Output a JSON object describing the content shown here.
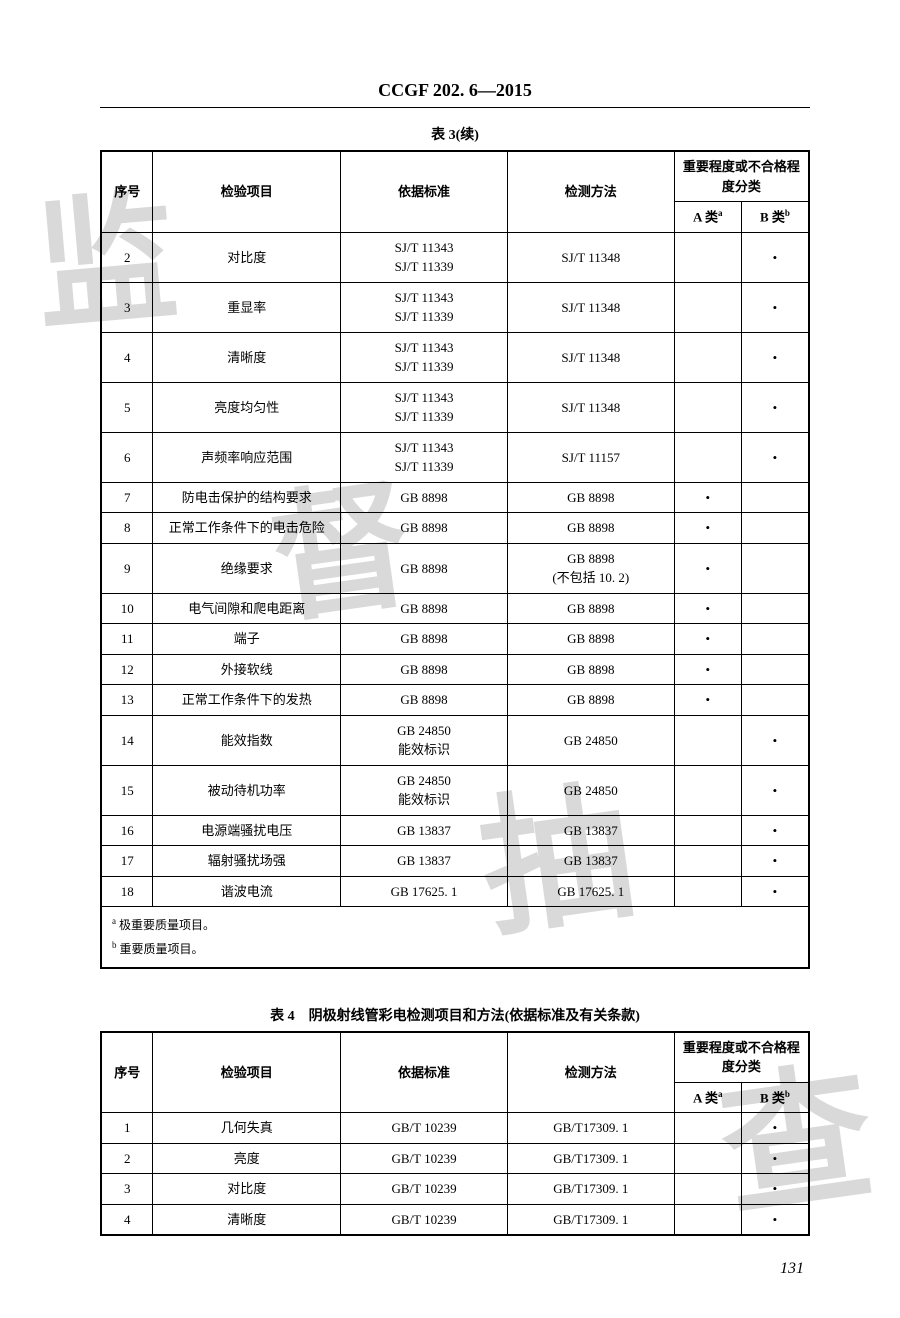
{
  "header": "CCGF 202. 6—2015",
  "page_number": "131",
  "table3": {
    "caption": "表 3(续)",
    "columns": {
      "seq": "序号",
      "item": "检验项目",
      "standard": "依据标准",
      "method": "检测方法",
      "importance_group": "重要程度或不合格程度分类",
      "classA": "A 类",
      "classB": "B 类",
      "sup_a": "a",
      "sup_b": "b"
    },
    "rows": [
      {
        "seq": "2",
        "item": "对比度",
        "standard": "SJ/T 11343\nSJ/T 11339",
        "method": "SJ/T 11348",
        "a": "",
        "b": "•"
      },
      {
        "seq": "3",
        "item": "重显率",
        "standard": "SJ/T 11343\nSJ/T 11339",
        "method": "SJ/T 11348",
        "a": "",
        "b": "•"
      },
      {
        "seq": "4",
        "item": "清晰度",
        "standard": "SJ/T 11343\nSJ/T 11339",
        "method": "SJ/T 11348",
        "a": "",
        "b": "•"
      },
      {
        "seq": "5",
        "item": "亮度均匀性",
        "standard": "SJ/T 11343\nSJ/T 11339",
        "method": "SJ/T 11348",
        "a": "",
        "b": "•"
      },
      {
        "seq": "6",
        "item": "声频率响应范围",
        "standard": "SJ/T 11343\nSJ/T 11339",
        "method": "SJ/T 11157",
        "a": "",
        "b": "•"
      },
      {
        "seq": "7",
        "item": "防电击保护的结构要求",
        "standard": "GB 8898",
        "method": "GB 8898",
        "a": "•",
        "b": ""
      },
      {
        "seq": "8",
        "item": "正常工作条件下的电击危险",
        "standard": "GB 8898",
        "method": "GB 8898",
        "a": "•",
        "b": ""
      },
      {
        "seq": "9",
        "item": "绝缘要求",
        "standard": "GB 8898",
        "method": "GB 8898\n(不包括 10. 2)",
        "a": "•",
        "b": ""
      },
      {
        "seq": "10",
        "item": "电气间隙和爬电距离",
        "standard": "GB 8898",
        "method": "GB 8898",
        "a": "•",
        "b": ""
      },
      {
        "seq": "11",
        "item": "端子",
        "standard": "GB 8898",
        "method": "GB 8898",
        "a": "•",
        "b": ""
      },
      {
        "seq": "12",
        "item": "外接软线",
        "standard": "GB 8898",
        "method": "GB 8898",
        "a": "•",
        "b": ""
      },
      {
        "seq": "13",
        "item": "正常工作条件下的发热",
        "standard": "GB 8898",
        "method": "GB 8898",
        "a": "•",
        "b": ""
      },
      {
        "seq": "14",
        "item": "能效指数",
        "standard": "GB 24850\n能效标识",
        "method": "GB 24850",
        "a": "",
        "b": "•"
      },
      {
        "seq": "15",
        "item": "被动待机功率",
        "standard": "GB 24850\n能效标识",
        "method": "GB 24850",
        "a": "",
        "b": "•"
      },
      {
        "seq": "16",
        "item": "电源端骚扰电压",
        "standard": "GB 13837",
        "method": "GB 13837",
        "a": "",
        "b": "•"
      },
      {
        "seq": "17",
        "item": "辐射骚扰场强",
        "standard": "GB 13837",
        "method": "GB 13837",
        "a": "",
        "b": "•"
      },
      {
        "seq": "18",
        "item": "谐波电流",
        "standard": "GB 17625. 1",
        "method": "GB 17625. 1",
        "a": "",
        "b": "•"
      }
    ],
    "footnotes": {
      "a": "极重要质量项目。",
      "b": "重要质量项目。"
    }
  },
  "table4": {
    "caption": "表 4　阴极射线管彩电检测项目和方法(依据标准及有关条款)",
    "columns": {
      "seq": "序号",
      "item": "检验项目",
      "standard": "依据标准",
      "method": "检测方法",
      "importance_group": "重要程度或不合格程度分类",
      "classA": "A 类",
      "classB": "B 类",
      "sup_a": "a",
      "sup_b": "b"
    },
    "rows": [
      {
        "seq": "1",
        "item": "几何失真",
        "standard": "GB/T 10239",
        "method": "GB/T17309. 1",
        "a": "",
        "b": "•"
      },
      {
        "seq": "2",
        "item": "亮度",
        "standard": "GB/T 10239",
        "method": "GB/T17309. 1",
        "a": "",
        "b": "•"
      },
      {
        "seq": "3",
        "item": "对比度",
        "standard": "GB/T 10239",
        "method": "GB/T17309. 1",
        "a": "",
        "b": "•"
      },
      {
        "seq": "4",
        "item": "清晰度",
        "standard": "GB/T 10239",
        "method": "GB/T17309. 1",
        "a": "",
        "b": "•"
      }
    ]
  },
  "watermark_chars": {
    "w1": "监",
    "w2": "督",
    "w3": "抽",
    "w4": "查"
  }
}
